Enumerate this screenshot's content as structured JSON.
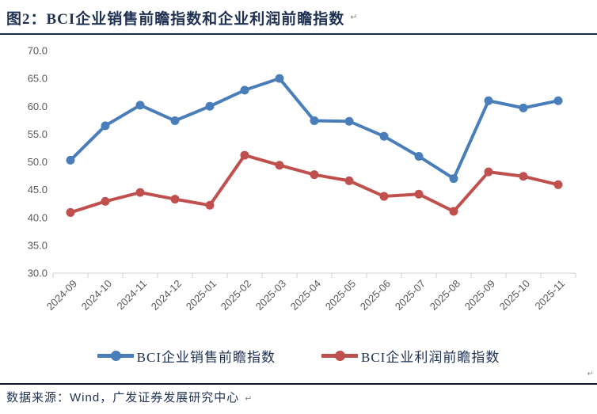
{
  "title": "图2：BCI企业销售前瞻指数和企业利润前瞻指数",
  "title_return_mark": "↵",
  "page_return_mark": "↵",
  "footer": {
    "source_prefix": "数据来源：",
    "source_latin": "Wind，",
    "source_suffix": "广发证券发展研究中心",
    "return_mark": "↵"
  },
  "colors": {
    "title_text": "#1e3153",
    "axis_text": "#595959",
    "axis_line": "#d9d9d9",
    "series_sales": "#4a7ebb",
    "series_profit": "#c0504d"
  },
  "chart_data": {
    "type": "line",
    "title": "BCI企业销售前瞻指数和企业利润前瞻指数",
    "xlabel": "",
    "ylabel": "",
    "ylim": [
      30,
      70
    ],
    "y_tick_step": 5,
    "y_tick_format_decimals": 1,
    "grid": false,
    "legend_position": "bottom",
    "categories": [
      "2024-09",
      "2024-10",
      "2024-11",
      "2024-12",
      "2025-01",
      "2025-02",
      "2025-03",
      "2025-04",
      "2025-05",
      "2025-06",
      "2025-07",
      "2025-08",
      "2025-09",
      "2025-10",
      "2025-11"
    ],
    "series": [
      {
        "name": "BCI企业销售前瞻指数",
        "color": "#4a7ebb",
        "values": [
          50.3,
          56.5,
          60.2,
          57.4,
          60.0,
          62.9,
          65.0,
          57.4,
          57.3,
          54.6,
          51.0,
          47.0,
          61.0,
          59.7,
          61.0
        ]
      },
      {
        "name": "BCI企业利润前瞻指数",
        "color": "#c0504d",
        "values": [
          40.9,
          42.9,
          44.5,
          43.3,
          42.2,
          51.2,
          49.4,
          47.7,
          46.6,
          43.8,
          44.2,
          41.1,
          48.2,
          47.4,
          45.9
        ]
      }
    ]
  }
}
